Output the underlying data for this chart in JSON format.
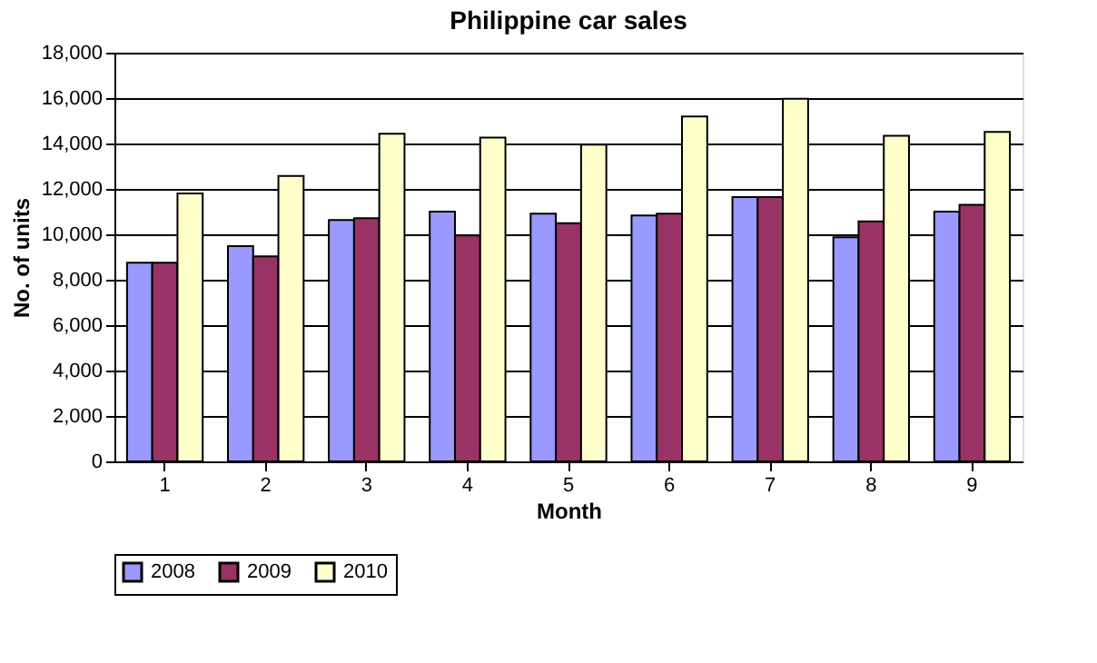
{
  "chart_data": {
    "type": "bar",
    "title": "Philippine car sales",
    "xlabel": "Month",
    "ylabel": "No. of units",
    "categories": [
      "1",
      "2",
      "3",
      "4",
      "5",
      "6",
      "7",
      "8",
      "9"
    ],
    "series": [
      {
        "name": "2008",
        "color": "#9999ff",
        "values": [
          8750,
          9480,
          10630,
          11000,
          10910,
          10830,
          11640,
          9870,
          11000
        ]
      },
      {
        "name": "2009",
        "color": "#993366",
        "values": [
          8750,
          9030,
          10710,
          9950,
          10490,
          10910,
          11640,
          10570,
          11300
        ]
      },
      {
        "name": "2010",
        "color": "#ffffcc",
        "values": [
          11800,
          12570,
          14430,
          14260,
          13950,
          15190,
          15970,
          14340,
          14510
        ]
      }
    ],
    "ylim": [
      0,
      18000
    ],
    "yticks": [
      {
        "value": 0,
        "label": "0"
      },
      {
        "value": 2000,
        "label": "2,000"
      },
      {
        "value": 4000,
        "label": "4,000"
      },
      {
        "value": 6000,
        "label": "6,000"
      },
      {
        "value": 8000,
        "label": "8,000"
      },
      {
        "value": 10000,
        "label": "10,000"
      },
      {
        "value": 12000,
        "label": "12,000"
      },
      {
        "value": 14000,
        "label": "14,000"
      },
      {
        "value": 16000,
        "label": "16,000"
      },
      {
        "value": 18000,
        "label": "18,000"
      }
    ],
    "grid": "y",
    "legend": "bottom"
  }
}
